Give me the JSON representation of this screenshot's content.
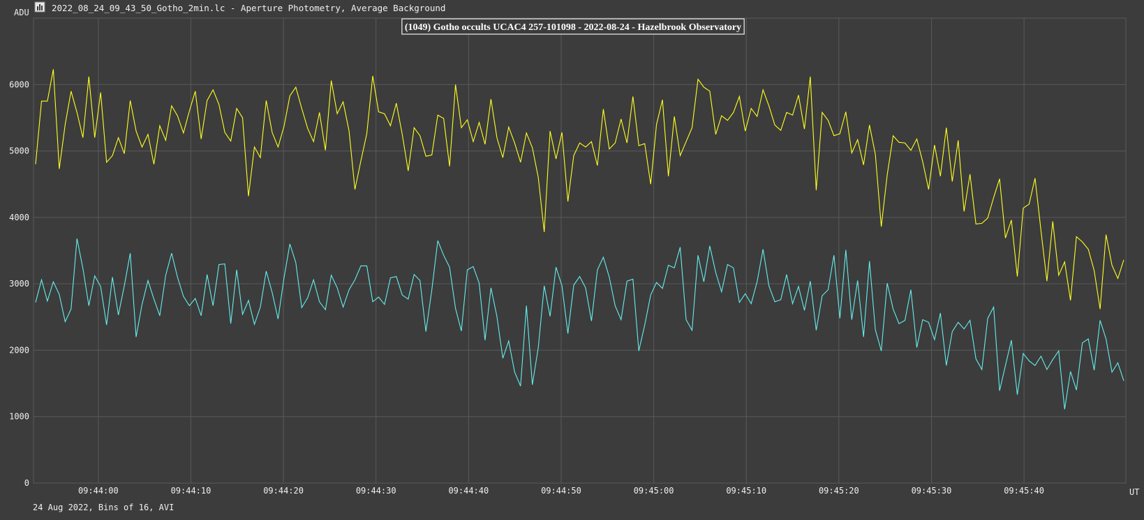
{
  "window": {
    "title": "2022_08_24_09_43_50_Gotho_2min.lc - Aperture Photometry, Average Background",
    "icon": "lightcurve-app-icon"
  },
  "colors": {
    "background": "#3c3c3c",
    "grid": "#5a5a5a",
    "axis_text": "#f0f0f0",
    "target": "#ffff22",
    "comparison": "#66eeee"
  },
  "chart_data": {
    "type": "line",
    "title": "(1049) Gotho occults UCAC4 257-101098 - 2022-08-24 - Hazelbrook Observatory",
    "ylabel": "ADU",
    "xlabel": "UT",
    "footer": "24 Aug 2022, Bins of 16, AVI",
    "ylim": [
      0,
      7000
    ],
    "yticks": [
      0,
      1000,
      2000,
      3000,
      4000,
      5000,
      6000
    ],
    "xlim": [
      "09:43:53",
      "09:45:51"
    ],
    "xticks": [
      "09:44:00",
      "09:44:10",
      "09:44:20",
      "09:44:30",
      "09:44:40",
      "09:44:50",
      "09:45:00",
      "09:45:10",
      "09:45:20",
      "09:45:30",
      "09:45:40"
    ],
    "grid": true,
    "series": [
      {
        "color": "#ffff22",
        "values": [
          4800,
          5750,
          5750,
          6230,
          4730,
          5400,
          5900,
          5580,
          5200,
          6120,
          5200,
          5880,
          4830,
          4930,
          5200,
          4960,
          5760,
          5300,
          5060,
          5250,
          4800,
          5380,
          5160,
          5680,
          5530,
          5270,
          5600,
          5900,
          5180,
          5760,
          5920,
          5700,
          5280,
          5150,
          5640,
          5500,
          4320,
          5060,
          4900,
          5760,
          5280,
          5060,
          5370,
          5830,
          5960,
          5640,
          5340,
          5140,
          5580,
          5010,
          6060,
          5560,
          5740,
          5300,
          4420,
          4850,
          5260,
          6130,
          5590,
          5560,
          5380,
          5720,
          5250,
          4700,
          5350,
          5230,
          4920,
          4940,
          5540,
          5490,
          4770,
          6000,
          5350,
          5470,
          5140,
          5430,
          5100,
          5780,
          5200,
          4900,
          5360,
          5120,
          4830,
          5270,
          5050,
          4600,
          3780,
          5300,
          4880,
          5280,
          4240,
          4930,
          5120,
          5060,
          5140,
          4780,
          5630,
          5030,
          5120,
          5480,
          5120,
          5820,
          5080,
          5110,
          4500,
          5400,
          5770,
          4620,
          5520,
          4930,
          5140,
          5350,
          6080,
          5960,
          5900,
          5250,
          5530,
          5460,
          5580,
          5820,
          5300,
          5640,
          5520,
          5920,
          5680,
          5390,
          5310,
          5580,
          5540,
          5840,
          5330,
          6120,
          4410,
          5580,
          5460,
          5230,
          5260,
          5590,
          4970,
          5170,
          4790,
          5390,
          4950,
          3860,
          4640,
          5230,
          5130,
          5120,
          5010,
          5180,
          4840,
          4420,
          5090,
          4620,
          5350,
          4540,
          5160,
          4090,
          4650,
          3900,
          3910,
          3990,
          4300,
          4580,
          3690,
          3960,
          3110,
          4140,
          4200,
          4590,
          3800,
          3040,
          3940,
          3130,
          3330,
          2750,
          3710,
          3630,
          3520,
          3200,
          2620,
          3740,
          3280,
          3080,
          3360
        ]
      },
      {
        "color": "#66eeee",
        "values": [
          2720,
          3060,
          2740,
          3030,
          2840,
          2430,
          2620,
          3680,
          3230,
          2670,
          3120,
          2960,
          2380,
          3100,
          2530,
          2970,
          3460,
          2200,
          2690,
          3050,
          2770,
          2520,
          3130,
          3460,
          3100,
          2810,
          2670,
          2780,
          2520,
          3140,
          2670,
          3290,
          3300,
          2400,
          3210,
          2540,
          2750,
          2390,
          2650,
          3190,
          2870,
          2470,
          3090,
          3600,
          3320,
          2640,
          2790,
          3060,
          2730,
          2610,
          3130,
          2940,
          2650,
          2910,
          3060,
          3270,
          3270,
          2730,
          2800,
          2690,
          3090,
          3110,
          2830,
          2770,
          3140,
          3050,
          2280,
          2910,
          3650,
          3430,
          3250,
          2630,
          2290,
          3210,
          3260,
          3010,
          2150,
          2940,
          2510,
          1880,
          2140,
          1670,
          1460,
          2670,
          1480,
          2040,
          2970,
          2510,
          3250,
          2970,
          2250,
          2980,
          3110,
          2940,
          2440,
          3210,
          3400,
          3100,
          2670,
          2460,
          3040,
          3070,
          1990,
          2380,
          2830,
          3020,
          2930,
          3280,
          3240,
          3550,
          2460,
          2300,
          3430,
          3030,
          3570,
          3170,
          2880,
          3290,
          3240,
          2720,
          2850,
          2700,
          3030,
          3520,
          2970,
          2730,
          2760,
          3140,
          2700,
          2960,
          2600,
          3040,
          2300,
          2820,
          2910,
          3430,
          2480,
          3510,
          2460,
          3050,
          2200,
          3340,
          2310,
          1990,
          3010,
          2620,
          2400,
          2450,
          2910,
          2040,
          2460,
          2420,
          2160,
          2560,
          1770,
          2280,
          2420,
          2320,
          2450,
          1870,
          1710,
          2480,
          2650,
          1390,
          1770,
          2150,
          1330,
          1950,
          1840,
          1770,
          1910,
          1710,
          1860,
          1990,
          1110,
          1680,
          1400,
          2110,
          2170,
          1700,
          2450,
          2170,
          1670,
          1810,
          1540
        ]
      }
    ]
  }
}
